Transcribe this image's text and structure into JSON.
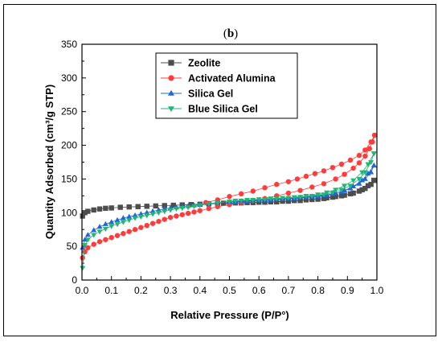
{
  "chart_data": {
    "type": "scatter",
    "panel_label": "(b)",
    "panel_letter": "b",
    "xlabel": "Relative Pressure (P/P°)",
    "ylabel": "Quantity Adsorbed (cm³/g STP)",
    "xlim": [
      0,
      1
    ],
    "ylim": [
      0,
      350
    ],
    "xticks": [
      "0.0",
      "0.1",
      "0.2",
      "0.3",
      "0.4",
      "0.5",
      "0.6",
      "0.7",
      "0.8",
      "0.9",
      "1.0"
    ],
    "yticks": [
      "0",
      "50",
      "100",
      "150",
      "200",
      "250",
      "300",
      "350"
    ],
    "grid": false,
    "legend_position": "top-center",
    "series": [
      {
        "name": "Zeolite",
        "color": "#4d4d4d",
        "marker": "square",
        "adsorption": [
          [
            0.002,
            95
          ],
          [
            0.01,
            100
          ],
          [
            0.02,
            102
          ],
          [
            0.04,
            104
          ],
          [
            0.06,
            105.5
          ],
          [
            0.08,
            106.5
          ],
          [
            0.1,
            107
          ],
          [
            0.13,
            108
          ],
          [
            0.16,
            108.5
          ],
          [
            0.19,
            109
          ],
          [
            0.22,
            109.5
          ],
          [
            0.25,
            110
          ],
          [
            0.28,
            110.5
          ],
          [
            0.31,
            111
          ],
          [
            0.34,
            111.5
          ],
          [
            0.37,
            112
          ],
          [
            0.4,
            112.5
          ],
          [
            0.43,
            113
          ],
          [
            0.46,
            113.5
          ],
          [
            0.5,
            114
          ],
          [
            0.54,
            114.5
          ],
          [
            0.58,
            115
          ],
          [
            0.62,
            115.5
          ],
          [
            0.66,
            116
          ],
          [
            0.7,
            117
          ],
          [
            0.74,
            118
          ],
          [
            0.78,
            119.5
          ],
          [
            0.82,
            121
          ],
          [
            0.85,
            123
          ],
          [
            0.88,
            125
          ],
          [
            0.91,
            128
          ],
          [
            0.94,
            132
          ],
          [
            0.96,
            136
          ],
          [
            0.98,
            142
          ],
          [
            0.99,
            148
          ]
        ],
        "desorption": [
          [
            0.99,
            148
          ],
          [
            0.97,
            140
          ],
          [
            0.95,
            134
          ],
          [
            0.92,
            129
          ],
          [
            0.89,
            126
          ],
          [
            0.86,
            124
          ],
          [
            0.83,
            122
          ],
          [
            0.8,
            120
          ],
          [
            0.76,
            119
          ],
          [
            0.72,
            118
          ],
          [
            0.68,
            117
          ],
          [
            0.64,
            116
          ],
          [
            0.6,
            115.5
          ],
          [
            0.56,
            115
          ],
          [
            0.52,
            114.5
          ],
          [
            0.48,
            114
          ]
        ]
      },
      {
        "name": "Activated Alumina",
        "color": "#ff3c3c",
        "marker": "circle",
        "adsorption": [
          [
            0.002,
            33
          ],
          [
            0.01,
            42
          ],
          [
            0.02,
            48
          ],
          [
            0.04,
            53
          ],
          [
            0.06,
            57
          ],
          [
            0.08,
            60
          ],
          [
            0.1,
            63
          ],
          [
            0.12,
            66
          ],
          [
            0.14,
            69
          ],
          [
            0.16,
            72
          ],
          [
            0.18,
            75
          ],
          [
            0.2,
            78
          ],
          [
            0.22,
            81
          ],
          [
            0.24,
            84
          ],
          [
            0.26,
            87
          ],
          [
            0.28,
            90
          ],
          [
            0.3,
            93
          ],
          [
            0.32,
            95
          ],
          [
            0.34,
            97
          ],
          [
            0.36,
            99
          ],
          [
            0.38,
            101
          ],
          [
            0.4,
            103
          ],
          [
            0.43,
            106
          ],
          [
            0.46,
            109
          ],
          [
            0.5,
            112
          ],
          [
            0.54,
            115
          ],
          [
            0.58,
            118
          ],
          [
            0.62,
            121
          ],
          [
            0.66,
            125
          ],
          [
            0.7,
            129
          ],
          [
            0.74,
            133
          ],
          [
            0.78,
            138
          ],
          [
            0.82,
            143
          ],
          [
            0.86,
            150
          ],
          [
            0.89,
            157
          ],
          [
            0.92,
            166
          ],
          [
            0.94,
            174
          ],
          [
            0.96,
            184
          ],
          [
            0.975,
            195
          ],
          [
            0.985,
            205
          ],
          [
            0.992,
            215
          ]
        ],
        "desorption": [
          [
            0.992,
            215
          ],
          [
            0.98,
            205
          ],
          [
            0.96,
            193
          ],
          [
            0.94,
            185
          ],
          [
            0.91,
            178
          ],
          [
            0.88,
            172
          ],
          [
            0.85,
            167
          ],
          [
            0.82,
            162
          ],
          [
            0.79,
            158
          ],
          [
            0.76,
            154
          ],
          [
            0.73,
            150
          ],
          [
            0.7,
            146
          ],
          [
            0.66,
            142
          ],
          [
            0.62,
            137
          ],
          [
            0.58,
            132
          ],
          [
            0.54,
            128
          ],
          [
            0.5,
            124
          ],
          [
            0.46,
            119
          ],
          [
            0.42,
            115
          ]
        ]
      },
      {
        "name": "Silica Gel",
        "color": "#1f66d9",
        "marker": "triangle-up",
        "adsorption": [
          [
            0.002,
            48
          ],
          [
            0.01,
            60
          ],
          [
            0.02,
            67
          ],
          [
            0.04,
            74
          ],
          [
            0.06,
            79
          ],
          [
            0.08,
            83
          ],
          [
            0.1,
            86
          ],
          [
            0.12,
            89
          ],
          [
            0.14,
            92
          ],
          [
            0.16,
            94
          ],
          [
            0.18,
            96
          ],
          [
            0.2,
            98
          ],
          [
            0.22,
            100
          ],
          [
            0.24,
            102
          ],
          [
            0.26,
            104
          ],
          [
            0.28,
            105.5
          ],
          [
            0.3,
            107
          ],
          [
            0.32,
            108
          ],
          [
            0.34,
            109
          ],
          [
            0.36,
            110
          ],
          [
            0.38,
            111
          ],
          [
            0.4,
            112
          ],
          [
            0.43,
            113.5
          ],
          [
            0.46,
            115
          ],
          [
            0.5,
            116
          ],
          [
            0.54,
            117
          ],
          [
            0.58,
            118
          ],
          [
            0.62,
            119
          ],
          [
            0.66,
            120
          ],
          [
            0.7,
            121
          ],
          [
            0.74,
            122.5
          ],
          [
            0.78,
            124
          ],
          [
            0.82,
            126
          ],
          [
            0.85,
            128
          ],
          [
            0.88,
            131
          ],
          [
            0.91,
            136
          ],
          [
            0.94,
            143
          ],
          [
            0.96,
            150
          ],
          [
            0.98,
            160
          ],
          [
            0.99,
            170
          ]
        ],
        "desorption": [
          [
            0.99,
            170
          ],
          [
            0.97,
            158
          ],
          [
            0.95,
            148
          ],
          [
            0.92,
            139
          ],
          [
            0.89,
            133
          ],
          [
            0.86,
            129
          ],
          [
            0.83,
            126
          ],
          [
            0.8,
            124
          ],
          [
            0.76,
            122.5
          ],
          [
            0.72,
            121
          ],
          [
            0.68,
            120
          ],
          [
            0.64,
            119
          ],
          [
            0.6,
            118
          ],
          [
            0.56,
            117
          ],
          [
            0.52,
            116
          ]
        ]
      },
      {
        "name": "Blue Silica Gel",
        "color": "#22b573",
        "marker": "triangle-down",
        "adsorption": [
          [
            0.002,
            18
          ],
          [
            0.01,
            52
          ],
          [
            0.02,
            60
          ],
          [
            0.04,
            67
          ],
          [
            0.06,
            72
          ],
          [
            0.08,
            76
          ],
          [
            0.1,
            80
          ],
          [
            0.12,
            83
          ],
          [
            0.14,
            86
          ],
          [
            0.16,
            89
          ],
          [
            0.18,
            92
          ],
          [
            0.2,
            94
          ],
          [
            0.22,
            96
          ],
          [
            0.24,
            98
          ],
          [
            0.26,
            100
          ],
          [
            0.28,
            102
          ],
          [
            0.3,
            104
          ],
          [
            0.32,
            106
          ],
          [
            0.34,
            107
          ],
          [
            0.36,
            108
          ],
          [
            0.38,
            109.5
          ],
          [
            0.4,
            111
          ],
          [
            0.43,
            113
          ],
          [
            0.46,
            115
          ],
          [
            0.5,
            116.5
          ],
          [
            0.54,
            118
          ],
          [
            0.58,
            119
          ],
          [
            0.62,
            120
          ],
          [
            0.66,
            121
          ],
          [
            0.7,
            122
          ],
          [
            0.74,
            123.5
          ],
          [
            0.78,
            125
          ],
          [
            0.82,
            127
          ],
          [
            0.85,
            130
          ],
          [
            0.88,
            134
          ],
          [
            0.91,
            140
          ],
          [
            0.94,
            150
          ],
          [
            0.96,
            160
          ],
          [
            0.98,
            175
          ],
          [
            0.99,
            188
          ]
        ],
        "desorption": [
          [
            0.99,
            188
          ],
          [
            0.97,
            172
          ],
          [
            0.95,
            160
          ],
          [
            0.92,
            148
          ],
          [
            0.89,
            140
          ],
          [
            0.86,
            134
          ],
          [
            0.83,
            130
          ],
          [
            0.8,
            127
          ],
          [
            0.76,
            125
          ],
          [
            0.72,
            123
          ],
          [
            0.68,
            122
          ],
          [
            0.64,
            121
          ],
          [
            0.6,
            120
          ],
          [
            0.56,
            119
          ],
          [
            0.52,
            118
          ]
        ]
      }
    ]
  }
}
